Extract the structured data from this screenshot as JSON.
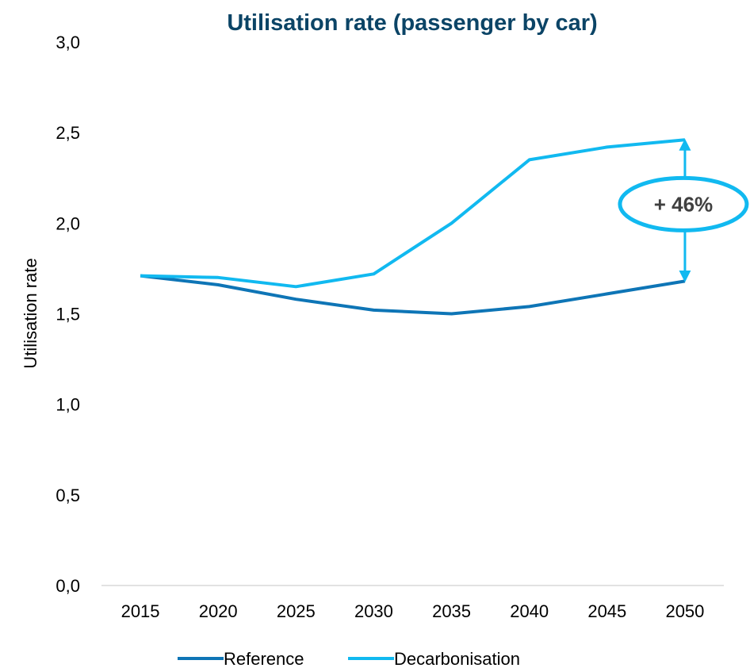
{
  "chart_data": {
    "type": "line",
    "title": "Utilisation rate (passenger by car)",
    "xlabel": "",
    "ylabel": "Utilisation rate",
    "categories": [
      "2015",
      "2020",
      "2025",
      "2030",
      "2035",
      "2040",
      "2045",
      "2050"
    ],
    "ylim": [
      0,
      3
    ],
    "yticks": [
      "0,0",
      "0,5",
      "1,0",
      "1,5",
      "2,0",
      "2,5",
      "3,0"
    ],
    "grid": false,
    "legend_position": "bottom",
    "series": [
      {
        "name": "Reference",
        "color": "#0E75B6",
        "values": [
          1.71,
          1.66,
          1.58,
          1.52,
          1.5,
          1.54,
          1.61,
          1.68
        ]
      },
      {
        "name": "Decarbonisation",
        "color": "#11B9F0",
        "values": [
          1.71,
          1.7,
          1.65,
          1.72,
          2.0,
          2.35,
          2.42,
          2.46
        ]
      }
    ],
    "annotation": {
      "text": "+ 46%",
      "color": "#11B9F0",
      "between": [
        "Reference",
        "Decarbonisation"
      ],
      "at_category": "2050"
    }
  }
}
